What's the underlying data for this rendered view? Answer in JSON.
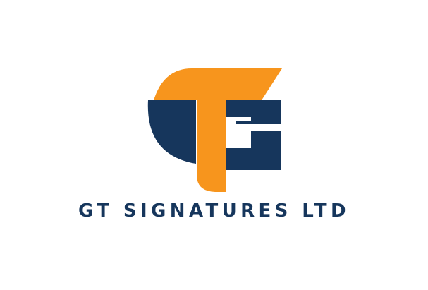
{
  "logo": {
    "company_name": "GT SIGNATURES LTD",
    "monogram_letters": "GT",
    "icon": "gt-monogram-icon"
  },
  "colors": {
    "background": "#ffffff",
    "navy": "#16365c",
    "orange": "#f7951d"
  }
}
